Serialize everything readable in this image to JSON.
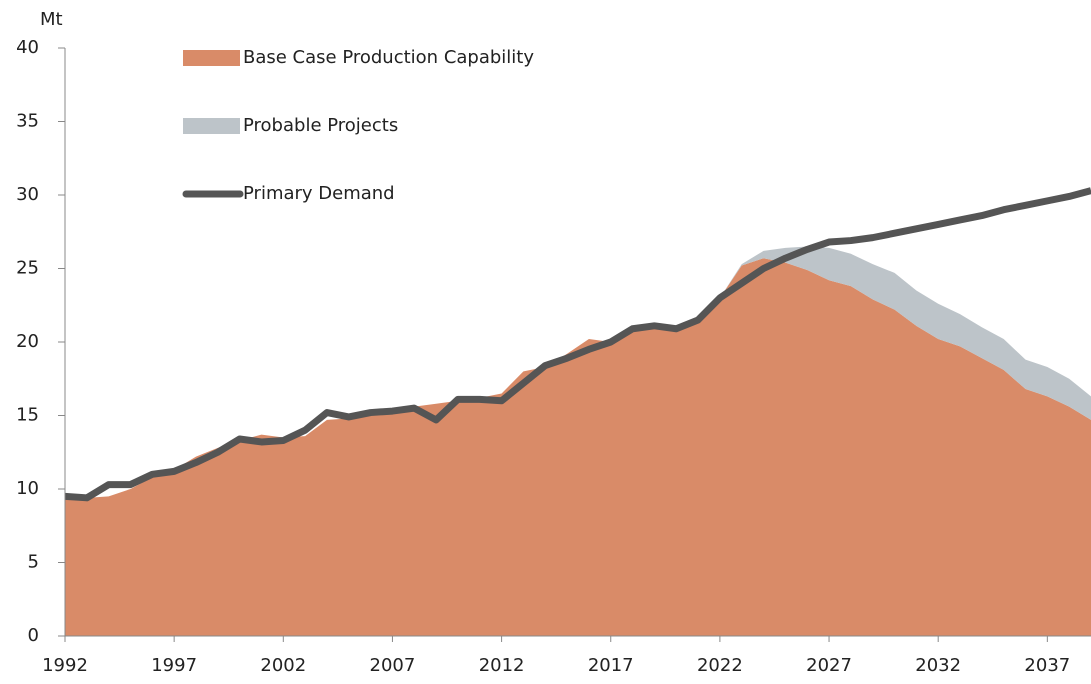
{
  "chart_data": {
    "type": "stacked_area_line",
    "y_label": "Mt",
    "x": [
      1992,
      1993,
      1994,
      1995,
      1996,
      1997,
      1998,
      1999,
      2000,
      2001,
      2002,
      2003,
      2004,
      2005,
      2006,
      2007,
      2008,
      2009,
      2010,
      2011,
      2012,
      2013,
      2014,
      2015,
      2016,
      2017,
      2018,
      2019,
      2020,
      2021,
      2022,
      2023,
      2024,
      2025,
      2026,
      2027,
      2028,
      2029,
      2030,
      2031,
      2032,
      2033,
      2034,
      2035,
      2036,
      2037,
      2038,
      2039
    ],
    "series": [
      {
        "name": "Base Case Production Capability",
        "kind": "area",
        "color": "#d98b68",
        "values": [
          9.4,
          9.4,
          9.5,
          10.0,
          10.8,
          11.3,
          12.2,
          12.8,
          13.3,
          13.7,
          13.5,
          13.6,
          14.7,
          14.8,
          15.1,
          15.3,
          15.6,
          15.8,
          16.0,
          16.2,
          16.5,
          18.0,
          18.3,
          19.2,
          20.2,
          20.0,
          21.0,
          21.0,
          21.0,
          21.3,
          23.0,
          25.2,
          25.7,
          25.4,
          24.9,
          24.2,
          23.8,
          22.9,
          22.2,
          21.1,
          20.2,
          19.7,
          18.9,
          18.1,
          16.8,
          16.3,
          15.6,
          14.7
        ]
      },
      {
        "name": "Probable Projects",
        "kind": "area",
        "color": "#bdc4c9",
        "values": [
          0,
          0,
          0,
          0,
          0,
          0,
          0,
          0,
          0,
          0,
          0,
          0,
          0,
          0,
          0,
          0,
          0,
          0,
          0,
          0,
          0,
          0,
          0,
          0,
          0,
          0,
          0,
          0,
          0,
          0,
          0,
          0.1,
          0.5,
          1.0,
          1.6,
          2.2,
          2.2,
          2.4,
          2.5,
          2.4,
          2.4,
          2.2,
          2.1,
          2.1,
          2.0,
          2.0,
          1.9,
          1.6
        ]
      },
      {
        "name": "Primary Demand",
        "kind": "line",
        "color": "#555555",
        "values": [
          9.5,
          9.4,
          10.3,
          10.3,
          11.0,
          11.2,
          11.8,
          12.5,
          13.4,
          13.2,
          13.3,
          14.0,
          15.2,
          14.9,
          15.2,
          15.3,
          15.5,
          14.7,
          16.1,
          16.1,
          16.0,
          17.2,
          18.4,
          18.9,
          19.5,
          20.0,
          20.9,
          21.1,
          20.9,
          21.5,
          23.0,
          24.0,
          25.0,
          25.7,
          26.3,
          26.8,
          26.9,
          27.1,
          27.4,
          27.7,
          28.0,
          28.3,
          28.6,
          29.0,
          29.3,
          29.6,
          29.9,
          30.3
        ]
      }
    ],
    "xlim": [
      1992,
      2039
    ],
    "xticks": [
      1992,
      1997,
      2002,
      2007,
      2012,
      2017,
      2022,
      2027,
      2032,
      2037
    ],
    "ylim": [
      0,
      40
    ],
    "yticks": [
      0,
      5,
      10,
      15,
      20,
      25,
      30,
      35,
      40
    ],
    "legend": "top-left"
  }
}
